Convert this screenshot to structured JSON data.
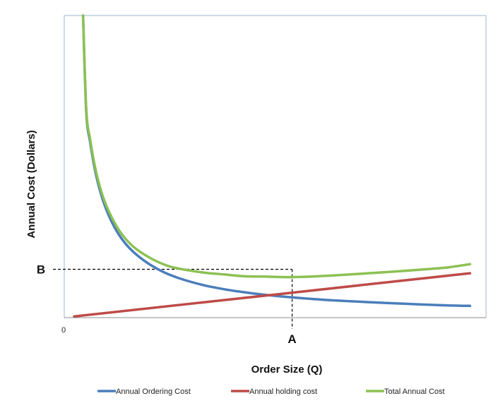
{
  "chart_data": {
    "type": "line",
    "title": "",
    "xlabel": "Order Size (Q)",
    "ylabel": "Annual Cost (Dollars)",
    "x_tick_origin": "0",
    "xlim": [
      0,
      100
    ],
    "ylim": [
      0,
      100
    ],
    "grid": false,
    "legend_position": "bottom",
    "optimum": {
      "x_label": "A",
      "y_label": "B",
      "x": 57,
      "y": 16
    },
    "series": [
      {
        "name": "Annual Ordering Cost",
        "color": "#4a7ebb",
        "x": [
          4.7,
          5.5,
          6.5,
          8,
          10,
          12.5,
          15,
          18,
          22,
          26,
          30,
          35,
          40,
          45,
          50,
          57,
          65,
          75,
          85,
          95,
          101.5
        ],
        "y": [
          100,
          68.2,
          57.8,
          46.9,
          37.6,
          30.1,
          25.0,
          20.9,
          17.1,
          14.4,
          12.5,
          10.7,
          9.4,
          8.4,
          7.6,
          6.7,
          5.9,
          5.2,
          4.6,
          4.1,
          3.9
        ]
      },
      {
        "name": "Annual holding cost",
        "color": "#be4b48",
        "x": [
          2.5,
          101.5
        ],
        "y": [
          0.4,
          14.7
        ]
      },
      {
        "name": "Total Annual Cost",
        "color": "#8cc152",
        "x": [
          4.7,
          5.5,
          6.5,
          8,
          10,
          12.5,
          15,
          18,
          22,
          26,
          30,
          35,
          40,
          45,
          50,
          57,
          65,
          75,
          85,
          95,
          101.5
        ],
        "y": [
          100,
          69.1,
          58.8,
          48.0,
          38.8,
          31.6,
          26.6,
          22.7,
          19.4,
          17.1,
          15.9,
          14.9,
          14.3,
          13.7,
          13.6,
          13.4,
          13.8,
          14.6,
          15.5,
          16.5,
          17.7
        ]
      }
    ]
  }
}
